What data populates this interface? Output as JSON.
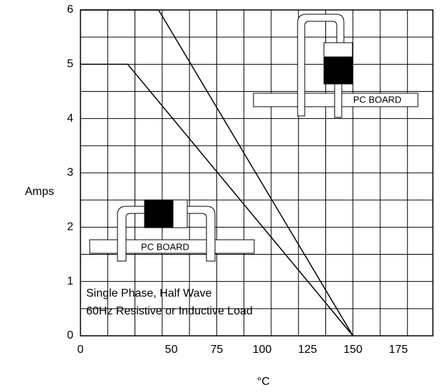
{
  "chart_data": {
    "type": "line",
    "ylabel": "Amps",
    "xlabel": "°C",
    "annotations": [
      "Single Phase, Half Wave",
      "60Hz Resistive or Inductive Load"
    ],
    "inset_labels": [
      "PC BOARD",
      "PC BOARD"
    ],
    "xlim": [
      0,
      194
    ],
    "ylim": [
      0,
      6
    ],
    "xticks": [
      0,
      50,
      75,
      100,
      125,
      150,
      175
    ],
    "yticks": [
      0,
      1,
      2,
      3,
      4,
      5,
      6
    ],
    "xgrid": [
      0,
      15,
      30,
      45,
      60,
      75,
      90,
      105,
      120,
      135,
      150,
      165,
      180
    ],
    "ygrid": [
      0.5,
      1,
      1.5,
      2,
      2.5,
      3,
      3.5,
      4,
      4.5,
      5,
      5.5
    ],
    "grid": true,
    "series": [
      {
        "color": "#000000",
        "x": [
          0,
          43,
          150
        ],
        "values": [
          6,
          6,
          0
        ]
      },
      {
        "color": "#000000",
        "x": [
          0,
          26,
          150
        ],
        "values": [
          5,
          5,
          0
        ]
      }
    ]
  }
}
